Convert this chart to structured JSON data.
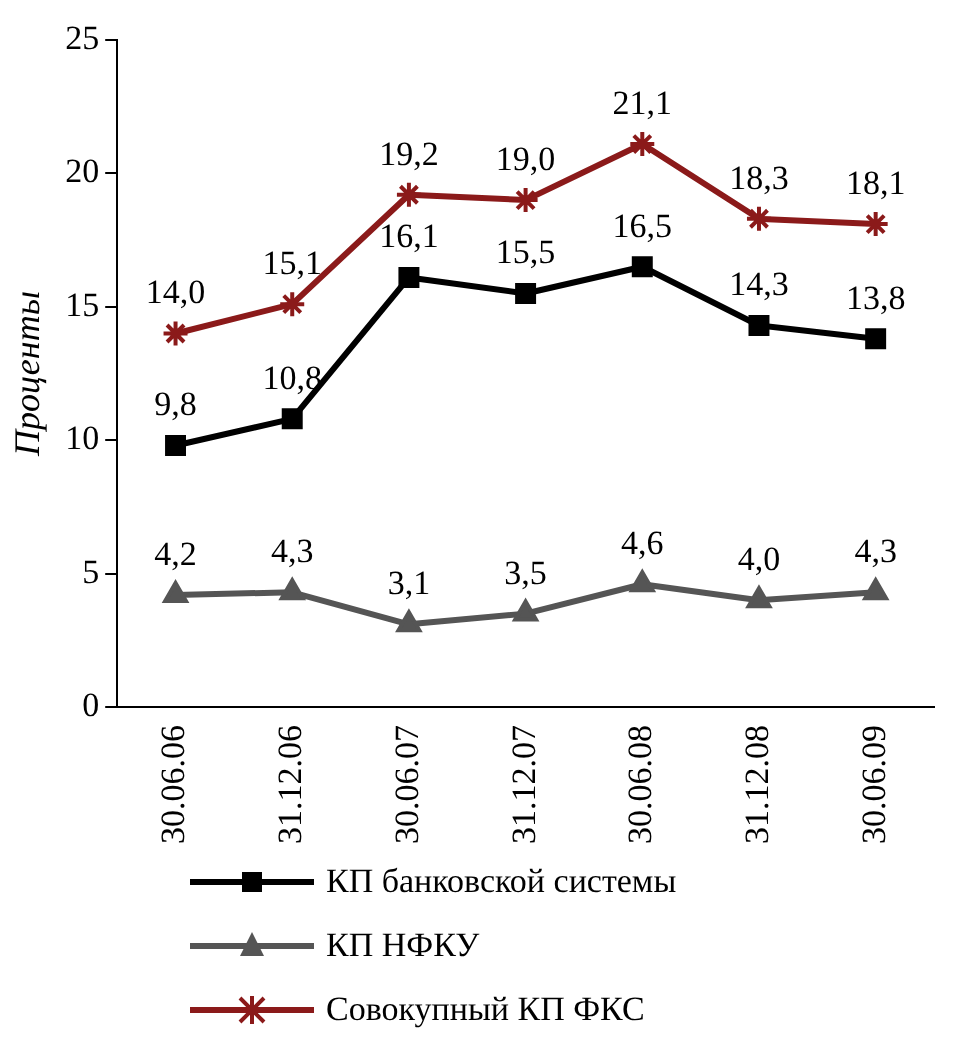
{
  "chart_data": {
    "type": "line",
    "ylabel": "Проценты",
    "categories": [
      "30.06.06",
      "31.12.06",
      "30.06.07",
      "31.12.07",
      "30.06.08",
      "31.12.08",
      "30.06.09"
    ],
    "series": [
      {
        "name": "КП банковской системы",
        "color": "#000000",
        "marker": "square",
        "values": [
          9.8,
          10.8,
          16.1,
          15.5,
          16.5,
          14.3,
          13.8
        ],
        "value_labels": [
          "9,8",
          "10,8",
          "16,1",
          "15,5",
          "16,5",
          "14,3",
          "13,8"
        ]
      },
      {
        "name": "КП НФКУ",
        "color": "#555555",
        "marker": "triangle",
        "values": [
          4.2,
          4.3,
          3.1,
          3.5,
          4.6,
          4.0,
          4.3
        ],
        "value_labels": [
          "4,2",
          "4,3",
          "3,1",
          "3,5",
          "4,6",
          "4,0",
          "4,3"
        ]
      },
      {
        "name": "Совокупный КП ФКС",
        "color": "#8b1a1a",
        "marker": "cross",
        "values": [
          14.0,
          15.1,
          19.2,
          19.0,
          21.1,
          18.3,
          18.1
        ],
        "value_labels": [
          "14,0",
          "15,1",
          "19,2",
          "19,0",
          "21,1",
          "18,3",
          "18,1"
        ]
      }
    ],
    "ylim": [
      0,
      25
    ],
    "yticks": [
      0,
      5,
      10,
      15,
      20,
      25
    ],
    "grid": false,
    "legend": "bottom"
  }
}
